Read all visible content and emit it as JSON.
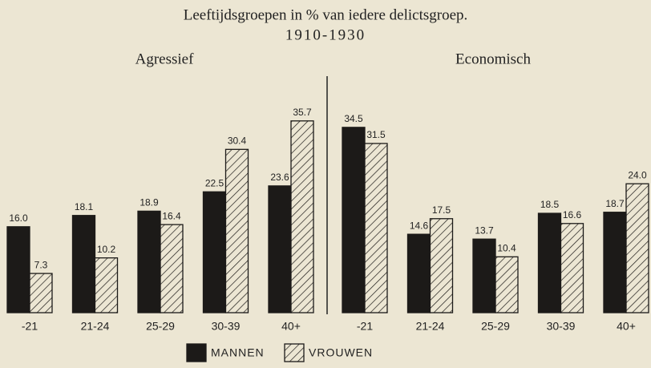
{
  "header": {
    "title": "Leeftijdsgroepen in % van iedere delictsgroep.",
    "subtitle": "1910-1930"
  },
  "chart_data": [
    {
      "type": "bar",
      "title": "Agressief",
      "categories": [
        "-21",
        "21-24",
        "25-29",
        "30-39",
        "40+"
      ],
      "series": [
        {
          "name": "MANNEN",
          "color": "#1c1a18",
          "hatch": false,
          "values": [
            16.0,
            18.1,
            18.9,
            22.5,
            23.6
          ],
          "value_labels": [
            "16.0",
            "18.1",
            "18.9",
            "22.5",
            "23.6"
          ]
        },
        {
          "name": "VROUWEN",
          "color": "#1c1a18",
          "hatch": true,
          "values": [
            7.3,
            10.2,
            16.4,
            30.4,
            35.7
          ],
          "value_labels": [
            "7.3",
            "10.2",
            "16.4",
            "30.4",
            "35.7"
          ]
        }
      ]
    },
    {
      "type": "bar",
      "title": "Economisch",
      "categories": [
        "-21",
        "21-24",
        "25-29",
        "30-39",
        "40+"
      ],
      "series": [
        {
          "name": "MANNEN",
          "color": "#1c1a18",
          "hatch": false,
          "values": [
            34.5,
            14.6,
            13.7,
            18.5,
            18.7
          ],
          "value_labels": [
            "34.5",
            "14.6",
            "13.7",
            "18.5",
            "18.7"
          ]
        },
        {
          "name": "VROUWEN",
          "color": "#1c1a18",
          "hatch": true,
          "values": [
            31.5,
            17.5,
            10.4,
            16.6,
            24.0
          ],
          "value_labels": [
            "31.5",
            "17.5",
            "10.4",
            "16.6",
            "24.0"
          ]
        }
      ]
    }
  ]
}
